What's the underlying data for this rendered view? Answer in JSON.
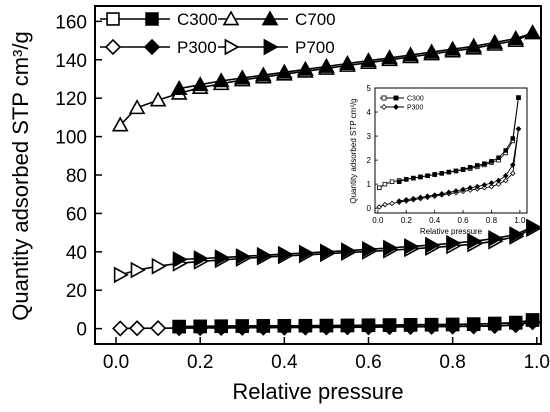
{
  "chart_data": [
    {
      "type": "line",
      "xlabel": "Relative pressure",
      "ylabel": "Quantity adsorbed STP cm³/g",
      "xlim": [
        -0.05,
        1.01
      ],
      "ylim": [
        -8,
        168
      ],
      "xticks": [
        "0.0",
        "0.2",
        "0.4",
        "0.6",
        "0.8",
        "1.0"
      ],
      "yticks": [
        "0",
        "20",
        "40",
        "60",
        "80",
        "100",
        "120",
        "140",
        "160"
      ],
      "grid": false,
      "legend_position": "top-left",
      "series": [
        {
          "name": "C300",
          "branch": "adsorption",
          "marker": "square",
          "fill": "open",
          "x": [
            0.15,
            0.2,
            0.25,
            0.3,
            0.35,
            0.4,
            0.45,
            0.5,
            0.55,
            0.6,
            0.65,
            0.7,
            0.75,
            0.8,
            0.85,
            0.9,
            0.95,
            0.99
          ],
          "y": [
            1.0,
            1.1,
            1.2,
            1.3,
            1.4,
            1.45,
            1.5,
            1.55,
            1.6,
            1.7,
            1.8,
            1.9,
            2.0,
            2.1,
            2.3,
            2.6,
            3.0,
            4.5
          ]
        },
        {
          "name": "C300",
          "branch": "desorption",
          "marker": "square",
          "fill": "solid",
          "x": [
            0.99,
            0.95,
            0.9,
            0.85,
            0.8,
            0.75,
            0.7,
            0.65,
            0.6,
            0.55,
            0.5,
            0.45,
            0.4,
            0.35,
            0.3,
            0.25,
            0.2,
            0.15
          ],
          "y": [
            4.5,
            3.2,
            2.7,
            2.4,
            2.2,
            2.1,
            2.0,
            1.9,
            1.8,
            1.7,
            1.6,
            1.55,
            1.5,
            1.45,
            1.4,
            1.3,
            1.2,
            1.1
          ]
        },
        {
          "name": "C700",
          "branch": "adsorption",
          "marker": "triangle",
          "fill": "open",
          "x": [
            0.01,
            0.05,
            0.1,
            0.15,
            0.2,
            0.25,
            0.3,
            0.35,
            0.4,
            0.45,
            0.5,
            0.55,
            0.6,
            0.65,
            0.7,
            0.75,
            0.8,
            0.85,
            0.9,
            0.95,
            0.99
          ],
          "y": [
            106,
            115,
            119,
            122.5,
            125.5,
            127.5,
            129.5,
            131,
            132.5,
            134,
            135.5,
            137,
            138.5,
            140,
            141.5,
            143,
            144.5,
            146,
            148,
            150,
            154
          ]
        },
        {
          "name": "C700",
          "branch": "desorption",
          "marker": "triangle",
          "fill": "solid",
          "x": [
            0.99,
            0.95,
            0.9,
            0.85,
            0.8,
            0.75,
            0.7,
            0.65,
            0.6,
            0.55,
            0.5,
            0.45,
            0.4,
            0.35,
            0.3,
            0.25,
            0.2,
            0.15
          ],
          "y": [
            154,
            151,
            149,
            147,
            145.5,
            144,
            142.5,
            141,
            139.5,
            138,
            136.5,
            135,
            133.5,
            132,
            130.5,
            129,
            127,
            125
          ]
        },
        {
          "name": "P300",
          "branch": "adsorption",
          "marker": "diamond",
          "fill": "open",
          "x": [
            0.01,
            0.05,
            0.1,
            0.15,
            0.2,
            0.25,
            0.3,
            0.35,
            0.4,
            0.45,
            0.5,
            0.55,
            0.6,
            0.65,
            0.7,
            0.75,
            0.8,
            0.85,
            0.9,
            0.95,
            0.99
          ],
          "y": [
            0.1,
            0.2,
            0.25,
            0.3,
            0.35,
            0.4,
            0.45,
            0.5,
            0.55,
            0.6,
            0.65,
            0.7,
            0.75,
            0.85,
            0.95,
            1.0,
            1.1,
            1.2,
            1.4,
            1.8,
            3.4
          ]
        },
        {
          "name": "P300",
          "branch": "desorption",
          "marker": "diamond",
          "fill": "solid",
          "x": [
            0.99,
            0.95,
            0.9,
            0.85,
            0.8,
            0.75,
            0.7,
            0.65,
            0.6,
            0.55,
            0.5,
            0.45,
            0.4,
            0.35,
            0.3,
            0.25,
            0.2,
            0.15
          ],
          "y": [
            3.4,
            2.0,
            1.5,
            1.3,
            1.2,
            1.1,
            1.0,
            0.95,
            0.9,
            0.85,
            0.8,
            0.75,
            0.7,
            0.65,
            0.6,
            0.55,
            0.45,
            0.4
          ]
        },
        {
          "name": "P700",
          "branch": "adsorption",
          "marker": "tri-right",
          "fill": "open",
          "x": [
            0.01,
            0.05,
            0.1,
            0.15,
            0.2,
            0.25,
            0.3,
            0.35,
            0.4,
            0.45,
            0.5,
            0.55,
            0.6,
            0.65,
            0.7,
            0.75,
            0.8,
            0.85,
            0.9,
            0.95,
            0.99
          ],
          "y": [
            28,
            30.5,
            32.5,
            34,
            35,
            35.8,
            36.5,
            37.2,
            37.8,
            38.4,
            39,
            39.6,
            40.2,
            40.8,
            41.5,
            42.2,
            43,
            44,
            45.5,
            48,
            52
          ]
        },
        {
          "name": "P700",
          "branch": "desorption",
          "marker": "tri-right",
          "fill": "solid",
          "x": [
            0.99,
            0.95,
            0.9,
            0.85,
            0.8,
            0.75,
            0.7,
            0.65,
            0.6,
            0.55,
            0.5,
            0.45,
            0.4,
            0.35,
            0.3,
            0.25,
            0.2,
            0.15
          ],
          "y": [
            53,
            49,
            47,
            45.5,
            44.5,
            43.5,
            42.8,
            42,
            41.3,
            40.6,
            40,
            39.4,
            38.8,
            38.2,
            37.6,
            37,
            36.5,
            36
          ]
        }
      ]
    },
    {
      "type": "line",
      "role": "inset",
      "xlabel": "Relative pressure",
      "ylabel": "Quantity adsorbed STP cm³/g",
      "xlim": [
        -0.02,
        1.05
      ],
      "ylim": [
        -0.2,
        5.0
      ],
      "xticks": [
        "0.0",
        "0.2",
        "0.4",
        "0.6",
        "0.8",
        "1.0"
      ],
      "yticks": [
        "0",
        "1",
        "2",
        "3",
        "4",
        "5"
      ],
      "grid": false,
      "legend_position": "top-left",
      "series": [
        {
          "name": "C300",
          "branch": "adsorption",
          "marker": "square",
          "fill": "open",
          "x": [
            0.01,
            0.05,
            0.1,
            0.15,
            0.2,
            0.25,
            0.3,
            0.35,
            0.4,
            0.45,
            0.5,
            0.55,
            0.6,
            0.65,
            0.7,
            0.75,
            0.8,
            0.85,
            0.9,
            0.95,
            0.99
          ],
          "y": [
            0.85,
            1.0,
            1.1,
            1.15,
            1.2,
            1.25,
            1.3,
            1.35,
            1.4,
            1.45,
            1.5,
            1.55,
            1.6,
            1.65,
            1.72,
            1.8,
            1.9,
            2.0,
            2.3,
            2.8,
            4.6
          ]
        },
        {
          "name": "C300",
          "branch": "desorption",
          "marker": "square",
          "fill": "solid",
          "x": [
            0.99,
            0.95,
            0.9,
            0.85,
            0.8,
            0.75,
            0.7,
            0.65,
            0.6,
            0.55,
            0.5,
            0.45,
            0.4,
            0.35,
            0.3,
            0.25,
            0.2,
            0.15
          ],
          "y": [
            4.6,
            2.9,
            2.4,
            2.1,
            1.95,
            1.85,
            1.78,
            1.7,
            1.62,
            1.55,
            1.5,
            1.45,
            1.4,
            1.35,
            1.3,
            1.25,
            1.2,
            1.1
          ]
        },
        {
          "name": "P300",
          "branch": "adsorption",
          "marker": "diamond",
          "fill": "open",
          "x": [
            0.01,
            0.05,
            0.1,
            0.15,
            0.2,
            0.25,
            0.3,
            0.35,
            0.4,
            0.45,
            0.5,
            0.55,
            0.6,
            0.65,
            0.7,
            0.75,
            0.8,
            0.85,
            0.9,
            0.95,
            0.99
          ],
          "y": [
            0.05,
            0.15,
            0.2,
            0.25,
            0.3,
            0.35,
            0.4,
            0.45,
            0.5,
            0.55,
            0.6,
            0.65,
            0.7,
            0.75,
            0.8,
            0.85,
            0.9,
            1.0,
            1.15,
            1.45,
            3.3
          ]
        },
        {
          "name": "P300",
          "branch": "desorption",
          "marker": "diamond",
          "fill": "solid",
          "x": [
            0.99,
            0.95,
            0.9,
            0.85,
            0.8,
            0.75,
            0.7,
            0.65,
            0.6,
            0.55,
            0.5,
            0.45,
            0.4,
            0.35,
            0.3,
            0.25,
            0.2,
            0.15
          ],
          "y": [
            3.3,
            1.8,
            1.35,
            1.15,
            1.05,
            0.97,
            0.9,
            0.85,
            0.78,
            0.72,
            0.66,
            0.6,
            0.55,
            0.5,
            0.45,
            0.4,
            0.35,
            0.3
          ]
        }
      ]
    }
  ]
}
